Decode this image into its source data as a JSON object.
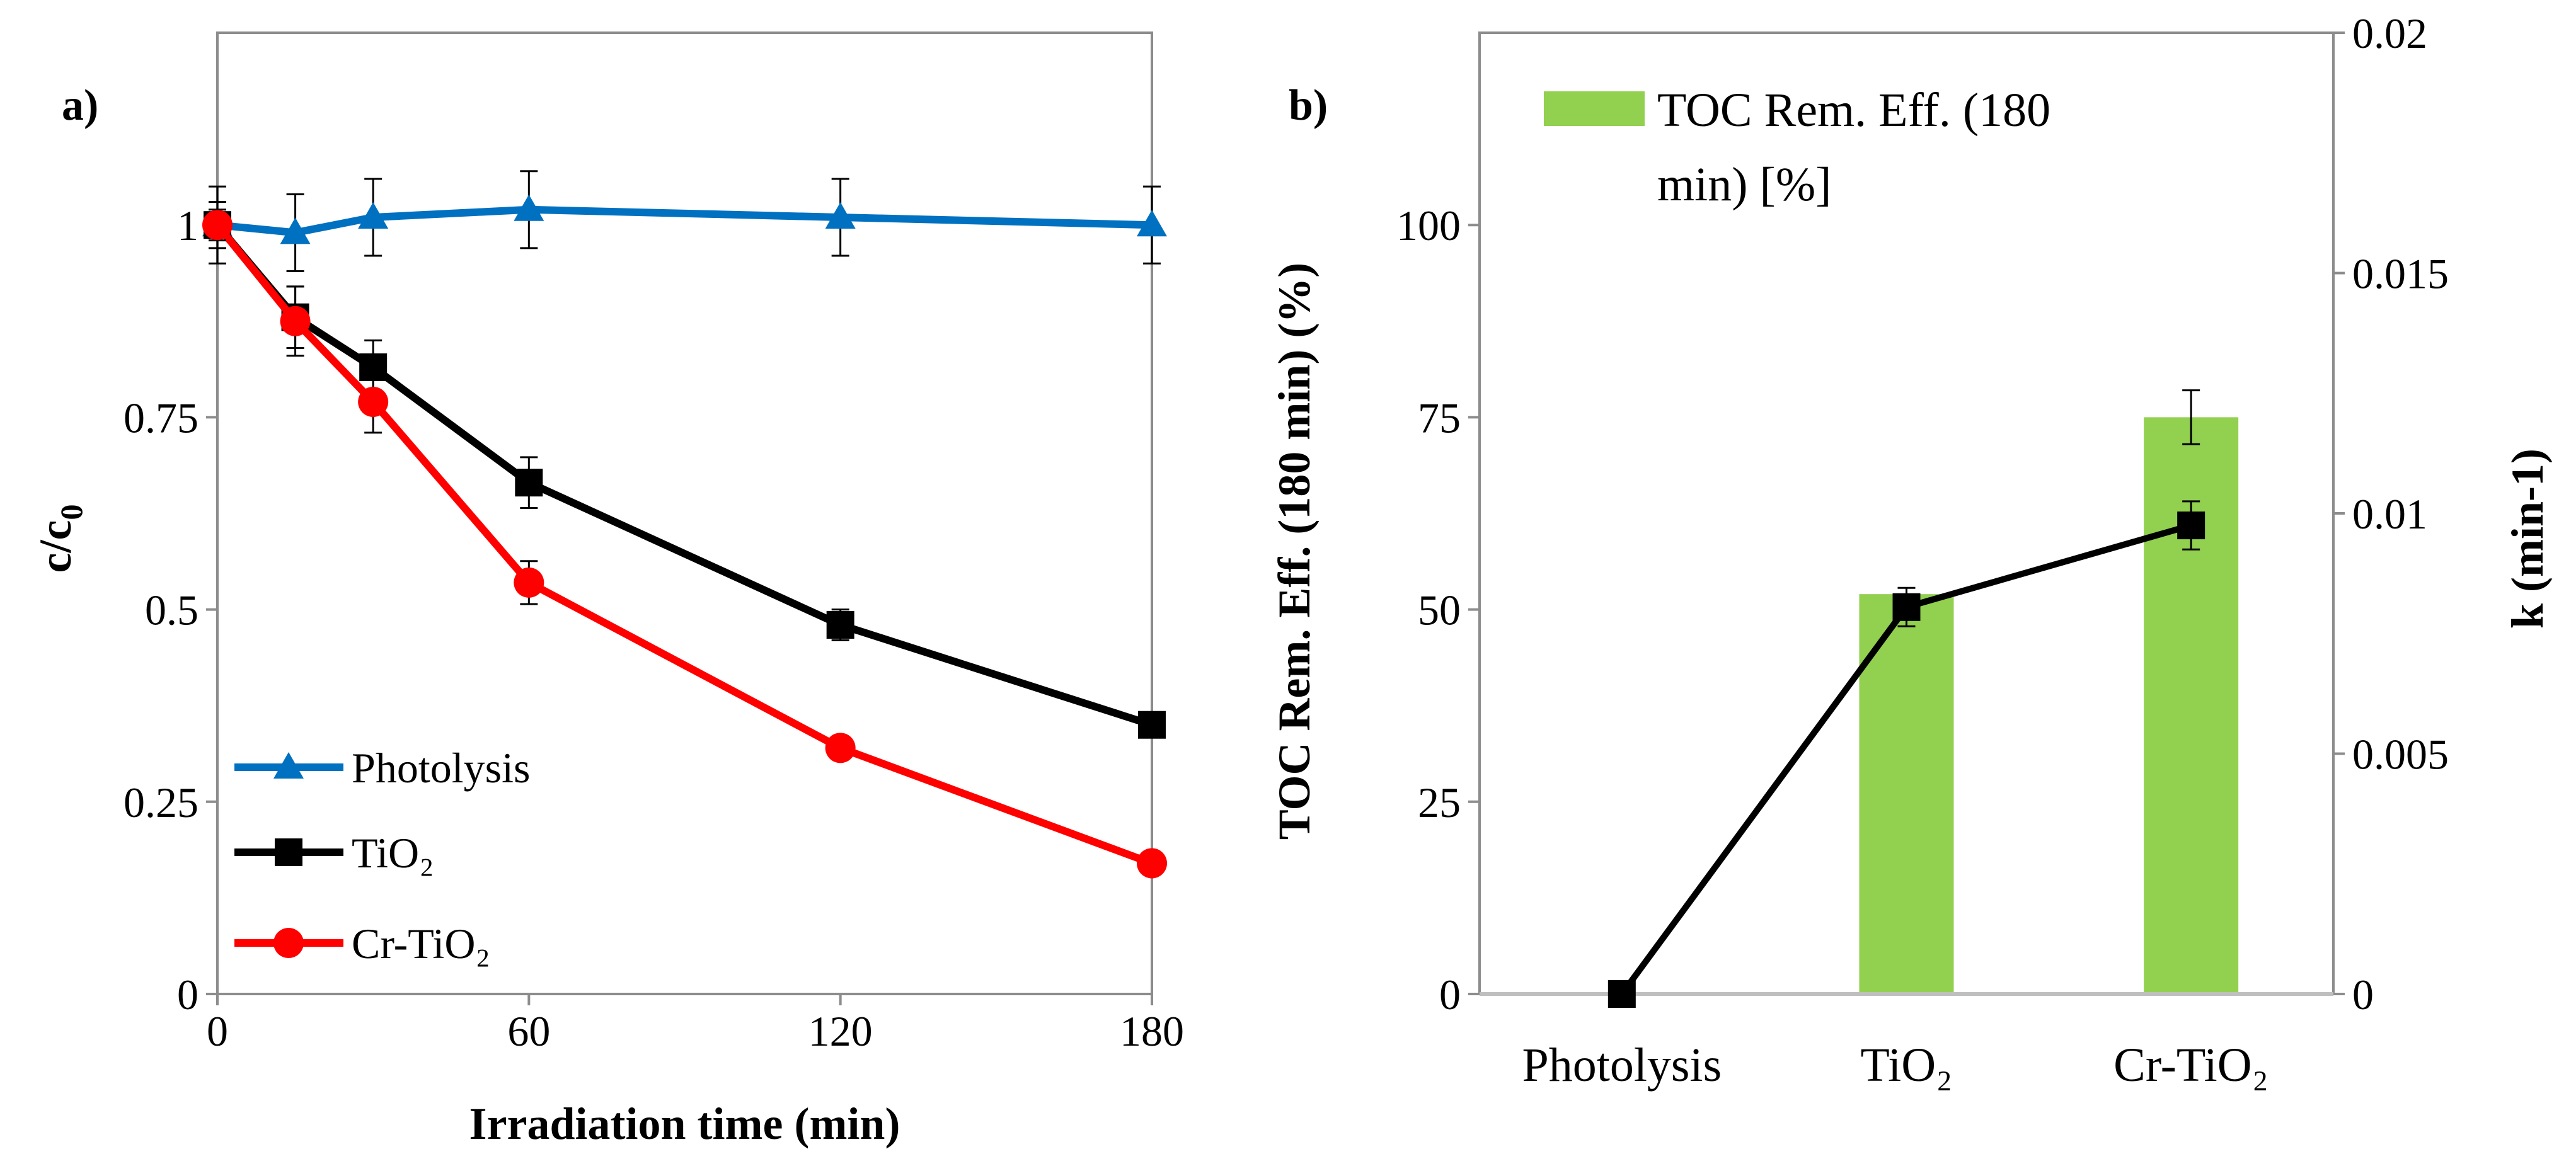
{
  "chart_data": [
    {
      "type": "line",
      "panel_label": "a)",
      "xlabel": "Irradiation time (min)",
      "ylabel_main": "c/c",
      "ylabel_sub": "0",
      "xlim": [
        0,
        180
      ],
      "ylim": [
        0,
        1.25
      ],
      "x_ticks": [
        0,
        60,
        120,
        180
      ],
      "x_tick_labels": [
        "0",
        "60",
        "120",
        "180"
      ],
      "y_ticks": [
        0,
        0.25,
        0.5,
        0.75,
        1
      ],
      "y_tick_labels": [
        "0",
        "0.25",
        "0.5",
        "0.75",
        "1"
      ],
      "x": [
        0,
        15,
        30,
        60,
        120,
        180
      ],
      "series": [
        {
          "name": "Photolysis",
          "marker": "triangle",
          "color": "#0070c0",
          "values": [
            1.0,
            0.99,
            1.01,
            1.02,
            1.01,
            1.0
          ],
          "errors": [
            0.05,
            0.05,
            0.05,
            0.05,
            0.05,
            0.05
          ]
        },
        {
          "name": "TiO₂",
          "marker": "square",
          "color": "#000000",
          "values": [
            1.0,
            0.88,
            0.815,
            0.665,
            0.48,
            0.35
          ],
          "errors": [
            0.03,
            0.04,
            0.035,
            0.033,
            0.02,
            0.01
          ]
        },
        {
          "name": "Cr-TiO₂",
          "marker": "circle",
          "color": "#ff0000",
          "values": [
            1.0,
            0.875,
            0.77,
            0.535,
            0.32,
            0.17
          ],
          "errors": [
            0.02,
            0.045,
            0.04,
            0.028,
            0.0,
            0.0
          ]
        }
      ],
      "legend_position": "bottom-left"
    },
    {
      "type": "bar",
      "panel_label": "b)",
      "categories": [
        "Photolysis",
        "TiO₂",
        "Cr-TiO₂"
      ],
      "ylabel_left": "TOC Rem. Eff.  (180 min) (%)",
      "ylabel_right": "k (min-1)",
      "ylim_left": [
        0,
        125
      ],
      "ylim_right": [
        0,
        0.02
      ],
      "y_left_ticks": [
        0,
        25,
        50,
        75,
        100
      ],
      "y_left_tick_labels": [
        "0",
        "25",
        "50",
        "75",
        "100"
      ],
      "y_right_ticks": [
        0,
        0.005,
        0.01,
        0.015,
        0.02
      ],
      "y_right_tick_labels": [
        "0",
        "0.005",
        "0.01",
        "0.015",
        "0.02"
      ],
      "bar_series": {
        "name": "TOC Rem. Eff. (180 min) [%]",
        "legend_line1": "TOC Rem. Eff. (180",
        "legend_line2": "min) [%]",
        "color": "#92d050",
        "values": [
          0,
          52,
          75
        ],
        "errors": [
          0,
          0,
          3.5
        ]
      },
      "line_series": {
        "name": "k",
        "color": "#000000",
        "values": [
          0,
          0.00805,
          0.00975
        ],
        "errors": [
          0,
          0.0004,
          0.0005
        ]
      },
      "legend_position": "top"
    }
  ]
}
